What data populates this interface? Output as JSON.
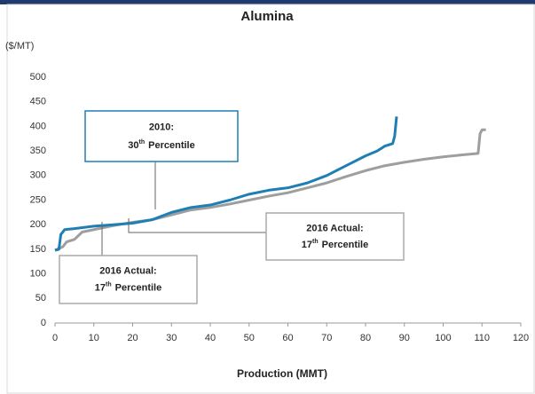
{
  "chart_data": {
    "type": "line",
    "title": "Alumina",
    "y_unit": "($/MT)",
    "x_label": "Production (MMT)",
    "xlim": [
      0,
      120
    ],
    "xticks": [
      0,
      10,
      20,
      30,
      40,
      50,
      60,
      70,
      80,
      90,
      100,
      110,
      120
    ],
    "ylim": [
      0,
      500
    ],
    "yticks": [
      0,
      50,
      100,
      150,
      200,
      250,
      300,
      350,
      400,
      450,
      500
    ],
    "grid": false,
    "series": [
      {
        "color": "#9e9e9e",
        "x": [
          0,
          2,
          3,
          5,
          7,
          10,
          15,
          20,
          25,
          30,
          35,
          40,
          45,
          50,
          55,
          60,
          65,
          70,
          75,
          80,
          85,
          90,
          95,
          100,
          105,
          109,
          109.5,
          110,
          111
        ],
        "values": [
          148,
          155,
          165,
          170,
          185,
          190,
          198,
          205,
          210,
          220,
          230,
          235,
          242,
          250,
          258,
          265,
          275,
          285,
          298,
          310,
          320,
          327,
          333,
          338,
          342,
          345,
          385,
          393,
          393
        ]
      },
      {
        "color": "#1f7fb5",
        "x": [
          0,
          1,
          1.5,
          2.5,
          5,
          10,
          15,
          20,
          25,
          30,
          35,
          40,
          45,
          50,
          55,
          60,
          65,
          70,
          75,
          80,
          83,
          85,
          87,
          87.5,
          88
        ],
        "values": [
          148,
          150,
          180,
          190,
          192,
          197,
          200,
          203,
          210,
          225,
          235,
          240,
          250,
          262,
          270,
          275,
          285,
          300,
          320,
          340,
          350,
          360,
          365,
          380,
          420
        ]
      }
    ],
    "annotations": [
      {
        "heading": "2010:",
        "ordinal": "30",
        "suffix": "th",
        "text": "Percentile"
      },
      {
        "heading": "2016 Actual:",
        "ordinal": "17",
        "suffix": "th",
        "text": "Percentile"
      },
      {
        "heading": "2016 Actual:",
        "ordinal": "17",
        "suffix": "th",
        "text": "Percentile"
      }
    ]
  }
}
